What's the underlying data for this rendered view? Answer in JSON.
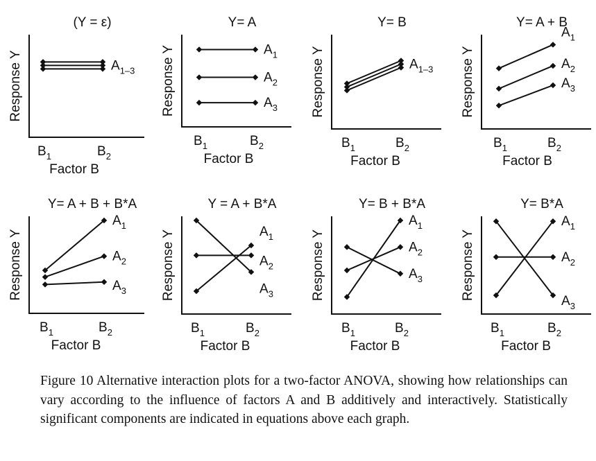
{
  "chart_data": [
    {
      "type": "line",
      "title": "(Y = ε)",
      "ylabel": "Response Y",
      "xlabel": "Factor B",
      "categories": [
        "B1",
        "B2"
      ],
      "ylim": [
        0,
        10
      ],
      "series": [
        {
          "name": "A1–3",
          "values": [
            7.3,
            7.3
          ]
        }
      ]
    },
    {
      "type": "line",
      "title": "Y= A",
      "ylabel": "Response Y",
      "xlabel": "Factor B",
      "categories": [
        "B1",
        "B2"
      ],
      "ylim": [
        0,
        10
      ],
      "series": [
        {
          "name": "A1",
          "values": [
            9.2,
            9.2
          ]
        },
        {
          "name": "A2",
          "values": [
            5.8,
            5.8
          ]
        },
        {
          "name": "A3",
          "values": [
            2.7,
            2.7
          ]
        }
      ]
    },
    {
      "type": "line",
      "title": "Y= B",
      "ylabel": "Response Y",
      "xlabel": "Factor B",
      "categories": [
        "B1",
        "B2"
      ],
      "ylim": [
        0,
        10
      ],
      "series": [
        {
          "name": "A1–3",
          "values": [
            4.8,
            7.5
          ]
        }
      ]
    },
    {
      "type": "line",
      "title": "Y= A + B",
      "ylabel": "Response Y",
      "xlabel": "Factor B",
      "categories": [
        "B1",
        "B2"
      ],
      "ylim": [
        0,
        10
      ],
      "series": [
        {
          "name": "A1",
          "values": [
            7.0,
            9.8
          ]
        },
        {
          "name": "A2",
          "values": [
            4.6,
            7.3
          ]
        },
        {
          "name": "A3",
          "values": [
            2.6,
            5.0
          ]
        }
      ]
    },
    {
      "type": "line",
      "title": "Y= A + B + B*A",
      "ylabel": "Response Y",
      "xlabel": "Factor B",
      "categories": [
        "B1",
        "B2"
      ],
      "ylim": [
        0,
        10
      ],
      "series": [
        {
          "name": "A1",
          "values": [
            4.0,
            10.0
          ]
        },
        {
          "name": "A2",
          "values": [
            3.2,
            5.7
          ]
        },
        {
          "name": "A3",
          "values": [
            2.3,
            2.6
          ]
        }
      ]
    },
    {
      "type": "line",
      "title": "Y = A + B*A",
      "ylabel": "Response Y",
      "xlabel": "Factor B",
      "categories": [
        "B1",
        "B2"
      ],
      "ylim": [
        0,
        10
      ],
      "series": [
        {
          "name": "A1",
          "values": [
            1.5,
            7.0
          ]
        },
        {
          "name": "A2",
          "values": [
            5.8,
            5.8
          ]
        },
        {
          "name": "A3",
          "values": [
            10.0,
            3.8
          ]
        }
      ]
    },
    {
      "type": "line",
      "title": "Y= B + B*A",
      "ylabel": "Response Y",
      "xlabel": "Factor B",
      "categories": [
        "B1",
        "B2"
      ],
      "ylim": [
        0,
        10
      ],
      "series": [
        {
          "name": "A1",
          "values": [
            0.8,
            10.0
          ]
        },
        {
          "name": "A2",
          "values": [
            4.0,
            6.8
          ]
        },
        {
          "name": "A3",
          "values": [
            6.8,
            3.6
          ]
        }
      ]
    },
    {
      "type": "line",
      "title": "Y= B*A",
      "ylabel": "Response Y",
      "xlabel": "Factor B",
      "categories": [
        "B1",
        "B2"
      ],
      "ylim": [
        0,
        10
      ],
      "series": [
        {
          "name": "A1",
          "values": [
            1.0,
            9.9
          ]
        },
        {
          "name": "A2",
          "values": [
            5.6,
            5.6
          ]
        },
        {
          "name": "A3",
          "values": [
            9.9,
            1.0
          ]
        }
      ]
    }
  ],
  "caption": "Figure 10 Alternative interaction plots for a two-factor ANOVA, showing how relationships can vary according to the influence of factors A and B additively and interactively. Statistically significant components are indicated in equations above each graph."
}
